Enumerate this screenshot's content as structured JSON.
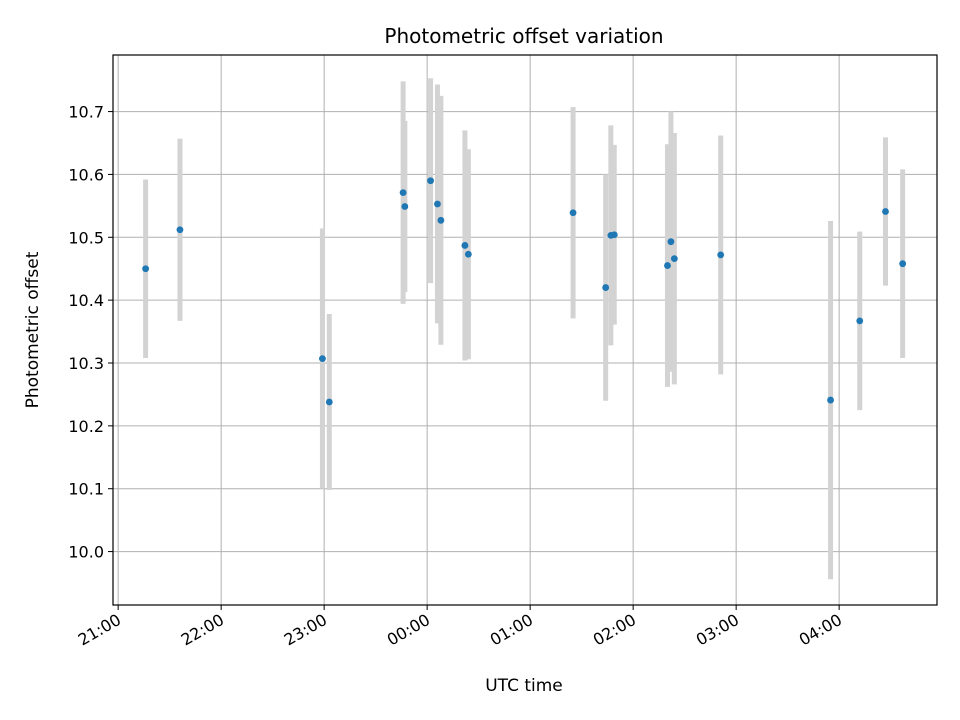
{
  "chart_data": {
    "type": "scatter",
    "title": "Photometric offset variation",
    "xlabel": "UTC time",
    "ylabel": "Photometric offset",
    "grid": true,
    "xlim": [
      "20:57",
      "04:57"
    ],
    "ylim": [
      9.915,
      10.79
    ],
    "x_ticks": [
      "21:00",
      "22:00",
      "23:00",
      "00:00",
      "01:00",
      "02:00",
      "03:00",
      "04:00"
    ],
    "y_ticks": [
      "10.0",
      "10.1",
      "10.2",
      "10.3",
      "10.4",
      "10.5",
      "10.6",
      "10.7"
    ],
    "colors": {
      "points": "#1f77b4",
      "errorbars": "#d3d3d3",
      "grid": "#b0b0b0"
    },
    "points": [
      {
        "x": "21:16",
        "y": 10.45,
        "err": 0.142
      },
      {
        "x": "21:36",
        "y": 10.512,
        "err": 0.145
      },
      {
        "x": "22:59",
        "y": 10.307,
        "err": 0.207
      },
      {
        "x": "23:03",
        "y": 10.238,
        "err": 0.14
      },
      {
        "x": "23:46",
        "y": 10.571,
        "err": 0.177
      },
      {
        "x": "23:47",
        "y": 10.549,
        "err": 0.136
      },
      {
        "x": "00:02",
        "y": 10.59,
        "err": 0.163
      },
      {
        "x": "00:06",
        "y": 10.553,
        "err": 0.19
      },
      {
        "x": "00:08",
        "y": 10.527,
        "err": 0.198
      },
      {
        "x": "00:22",
        "y": 10.487,
        "err": 0.183
      },
      {
        "x": "00:24",
        "y": 10.473,
        "err": 0.167
      },
      {
        "x": "01:25",
        "y": 10.539,
        "err": 0.168
      },
      {
        "x": "01:44",
        "y": 10.42,
        "err": 0.18
      },
      {
        "x": "01:47",
        "y": 10.503,
        "err": 0.175
      },
      {
        "x": "01:49",
        "y": 10.504,
        "err": 0.143
      },
      {
        "x": "02:20",
        "y": 10.455,
        "err": 0.193
      },
      {
        "x": "02:22",
        "y": 10.493,
        "err": 0.207
      },
      {
        "x": "02:24",
        "y": 10.466,
        "err": 0.2
      },
      {
        "x": "02:51",
        "y": 10.472,
        "err": 0.19
      },
      {
        "x": "03:55",
        "y": 10.241,
        "err": 0.285
      },
      {
        "x": "04:12",
        "y": 10.367,
        "err": 0.142
      },
      {
        "x": "04:27",
        "y": 10.541,
        "err": 0.118
      },
      {
        "x": "04:37",
        "y": 10.458,
        "err": 0.15
      }
    ]
  }
}
